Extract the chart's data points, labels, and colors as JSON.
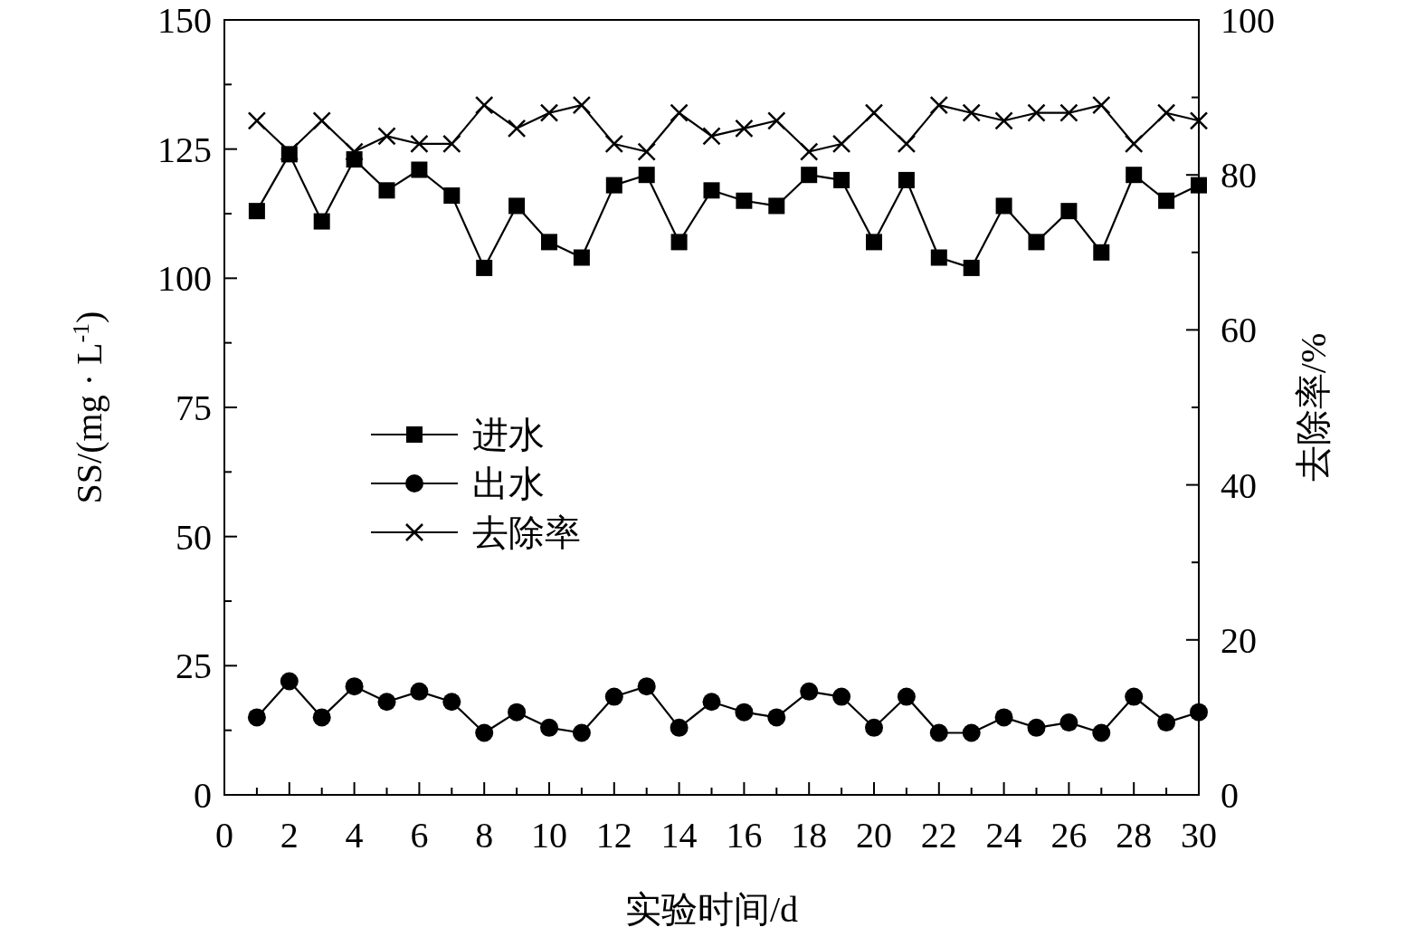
{
  "chart_data": {
    "type": "line",
    "xlabel": "实验时间/d",
    "ylabel": "SS/(mg · L$^{-1}$)",
    "y2label": "去除率/%",
    "x": [
      1,
      2,
      3,
      4,
      5,
      6,
      7,
      8,
      9,
      10,
      11,
      12,
      13,
      14,
      15,
      16,
      17,
      18,
      19,
      20,
      21,
      22,
      23,
      24,
      25,
      26,
      27,
      28,
      29,
      30
    ],
    "xlim": [
      0,
      30
    ],
    "xticks": [
      0,
      {
        "value": 1,
        "label": null
      },
      2,
      {
        "value": 3,
        "label": null
      },
      4,
      {
        "value": 5,
        "label": null
      },
      6,
      {
        "value": 7,
        "label": null
      },
      8,
      {
        "value": 9,
        "label": null
      },
      10,
      {
        "value": 11,
        "label": null
      },
      12,
      {
        "value": 13,
        "label": null
      },
      14,
      {
        "value": 15,
        "label": null
      },
      16,
      {
        "value": 17,
        "label": null
      },
      18,
      {
        "value": 19,
        "label": null
      },
      20,
      {
        "value": 21,
        "label": null
      },
      22,
      {
        "value": 23,
        "label": null
      },
      24,
      {
        "value": 25,
        "label": null
      },
      26,
      {
        "value": 27,
        "label": null
      },
      28,
      {
        "value": 29,
        "label": null
      },
      30
    ],
    "ylim": [
      0,
      150
    ],
    "yticks": [
      0,
      {
        "value": 12.5,
        "label": null
      },
      25,
      {
        "value": 37.5,
        "label": null
      },
      50,
      {
        "value": 62.5,
        "label": null
      },
      75,
      {
        "value": 87.5,
        "label": null
      },
      100,
      {
        "value": 112.5,
        "label": null
      },
      125,
      {
        "value": 137.5,
        "label": null
      },
      150
    ],
    "y2lim": [
      0,
      100
    ],
    "y2ticks": [
      0,
      {
        "value": 10,
        "label": null
      },
      20,
      {
        "value": 30,
        "label": null
      },
      40,
      {
        "value": 50,
        "label": null
      },
      60,
      {
        "value": 70,
        "label": null
      },
      80,
      {
        "value": 90,
        "label": null
      },
      100
    ],
    "legend": "left",
    "grid": false,
    "line_style": "solid",
    "series": [
      {
        "name": "进水",
        "color": "#000000",
        "marker": "square",
        "values": [
          113,
          124,
          111,
          123,
          117,
          121,
          116,
          102,
          114,
          107,
          104,
          118,
          120,
          107,
          117,
          115,
          114,
          120,
          119,
          107,
          119,
          104,
          102,
          114,
          107,
          113,
          105,
          120,
          115,
          118
        ]
      },
      {
        "name": "出水",
        "color": "#000000",
        "marker": "circle",
        "values": [
          15,
          22,
          15,
          21,
          18,
          20,
          18,
          12,
          16,
          13,
          12,
          19,
          21,
          13,
          18,
          16,
          15,
          20,
          19,
          13,
          19,
          12,
          12,
          15,
          13,
          14,
          12,
          19,
          14,
          16
        ]
      },
      {
        "name": "去除率",
        "color": "#000000",
        "marker": "cross",
        "axis": "y2",
        "values": [
          87,
          83,
          87,
          83,
          85,
          84,
          84,
          89,
          86,
          88,
          89,
          84,
          83,
          88,
          85,
          86,
          87,
          83,
          84,
          88,
          84,
          89,
          88,
          87,
          88,
          88,
          89,
          84,
          88,
          87
        ]
      }
    ]
  }
}
